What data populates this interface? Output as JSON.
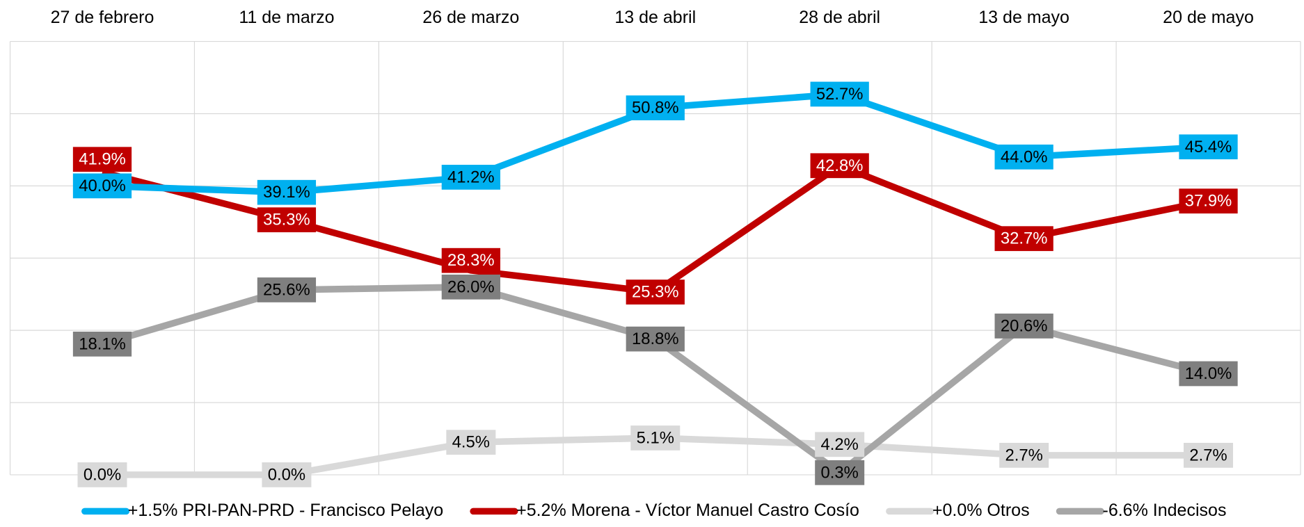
{
  "chart_data": {
    "type": "line",
    "categories": [
      "27 de febrero",
      "11 de marzo",
      "26 de marzo",
      "13 de abril",
      "28 de abril",
      "13 de mayo",
      "20 de mayo"
    ],
    "ylim": [
      0,
      60
    ],
    "yticks": [
      0,
      10,
      20,
      30,
      40,
      50,
      60
    ],
    "grid": true,
    "series": [
      {
        "name": "+0.0% Otros",
        "color": "#d9d9d9",
        "label_fill": "#d9d9d9",
        "label_text_color": "#000000",
        "values": [
          0,
          0,
          4.5,
          5.1,
          4.2,
          2.7,
          2.7
        ],
        "value_labels": [
          "0.0%",
          "0.0%",
          "4.5%",
          "5.1%",
          "4.2%",
          "2.7%",
          "2.7%"
        ]
      },
      {
        "name": "-6.6% Indecisos",
        "color": "#a6a6a6",
        "label_fill": "#7f7f7f",
        "label_text_color": "#000000",
        "values": [
          18.1,
          25.6,
          26.0,
          18.8,
          0.3,
          20.6,
          14.0
        ],
        "value_labels": [
          "18.1%",
          "25.6%",
          "26.0%",
          "18.8%",
          "0.3%",
          "20.6%",
          "14.0%"
        ]
      },
      {
        "name": "+5.2% Morena - Víctor Manuel Castro Cosío",
        "color": "#c00000",
        "label_fill": "#c00000",
        "label_text_color": "#ffffff",
        "values": [
          41.9,
          35.3,
          28.3,
          25.3,
          42.8,
          32.7,
          37.9
        ],
        "value_labels": [
          "41.9%",
          "35.3%",
          "28.3%",
          "25.3%",
          "42.8%",
          "32.7%",
          "37.9%"
        ]
      },
      {
        "name": "+1.5% PRI-PAN-PRD - Francisco Pelayo",
        "color": "#00b0f0",
        "label_fill": "#00b0f0",
        "label_text_color": "#000000",
        "values": [
          40.0,
          39.1,
          41.2,
          50.8,
          52.7,
          44.0,
          45.4
        ],
        "value_labels": [
          "40.0%",
          "39.1%",
          "41.2%",
          "50.8%",
          "52.7%",
          "44.0%",
          "45.4%"
        ]
      }
    ],
    "legend_order": [
      3,
      2,
      0,
      1
    ]
  }
}
